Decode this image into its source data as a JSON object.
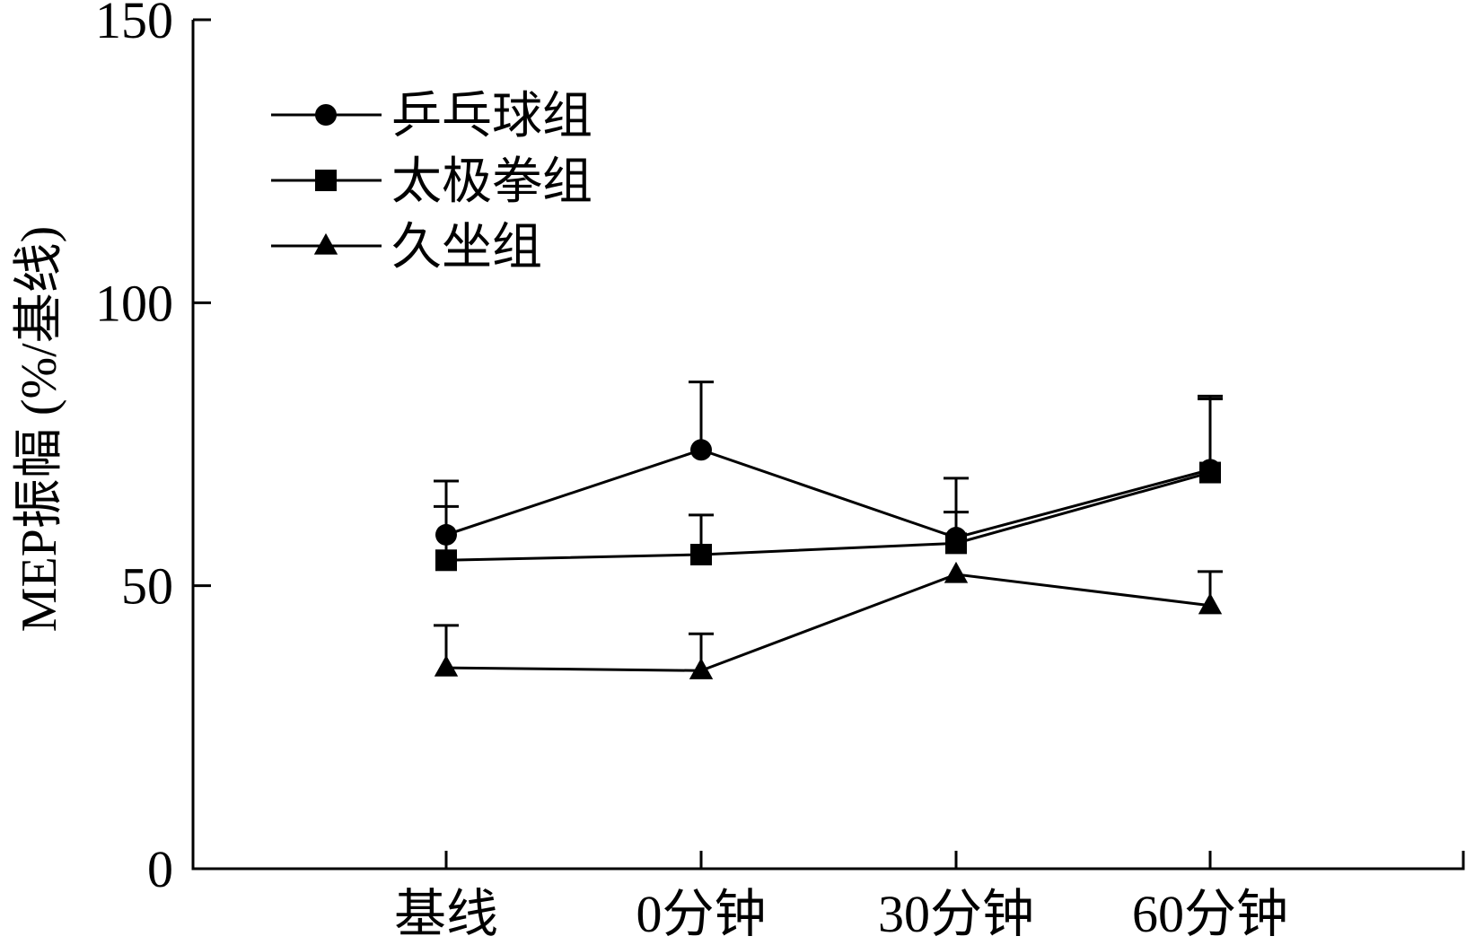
{
  "chart_data": {
    "type": "line",
    "categories": [
      "基线",
      "0分钟",
      "30分钟",
      "60分钟"
    ],
    "ylabel": "MEP振幅 (%/基线)",
    "xlabel": "",
    "ylim": [
      0,
      150
    ],
    "yticks": [
      0,
      50,
      100,
      150
    ],
    "grid": false,
    "legend_position": "top-left",
    "series": [
      {
        "name": "乒乓球组",
        "marker": "circle",
        "values": [
          59,
          74,
          58.5,
          70.5
        ],
        "error": [
          9.5,
          12,
          10.5,
          12.5
        ]
      },
      {
        "name": "太极拳组",
        "marker": "square",
        "values": [
          54.5,
          55.5,
          57.5,
          70
        ],
        "error": [
          9.5,
          7,
          5.5,
          13.5
        ]
      },
      {
        "name": "久坐组",
        "marker": "triangle",
        "values": [
          35.5,
          35,
          52,
          46.5
        ],
        "error": [
          7.5,
          6.5,
          0,
          6
        ]
      }
    ]
  }
}
